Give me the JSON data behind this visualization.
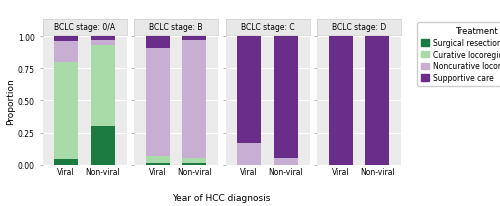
{
  "facets": [
    "BCLC stage: 0/A",
    "BCLC stage: B",
    "BCLC stage: C",
    "BCLC stage: D"
  ],
  "categories": [
    "Viral",
    "Non-viral"
  ],
  "colors": {
    "surgical": "#1a7a40",
    "curative": "#a8dba8",
    "noncurative": "#c9aed4",
    "supportive": "#6a2d8a"
  },
  "legend_labels": [
    "Surgical resection",
    "Curative locoregional therapy",
    "Noncurative locoregional therapy",
    "Supportive care"
  ],
  "data": {
    "BCLC stage: 0/A": {
      "Viral": [
        0.04,
        0.76,
        0.16,
        0.04
      ],
      "Non-viral": [
        0.3,
        0.63,
        0.04,
        0.03
      ]
    },
    "BCLC stage: B": {
      "Viral": [
        0.01,
        0.06,
        0.84,
        0.09
      ],
      "Non-viral": [
        0.01,
        0.04,
        0.92,
        0.03
      ]
    },
    "BCLC stage: C": {
      "Viral": [
        0.0,
        0.0,
        0.17,
        0.83
      ],
      "Non-viral": [
        0.0,
        0.0,
        0.05,
        0.95
      ]
    },
    "BCLC stage: D": {
      "Viral": [
        0.0,
        0.0,
        0.0,
        1.0
      ],
      "Non-viral": [
        0.0,
        0.0,
        0.0,
        1.0
      ]
    }
  },
  "xlabel": "Year of HCC diagnosis",
  "ylabel": "Proportion",
  "facet_label_fontsize": 5.5,
  "axis_label_fontsize": 6.5,
  "tick_fontsize": 5.5,
  "legend_title_fontsize": 6.0,
  "legend_fontsize": 5.5,
  "strip_color": "#e8e8e8",
  "panel_background": "#ebebeb",
  "grid_color": "#ffffff"
}
